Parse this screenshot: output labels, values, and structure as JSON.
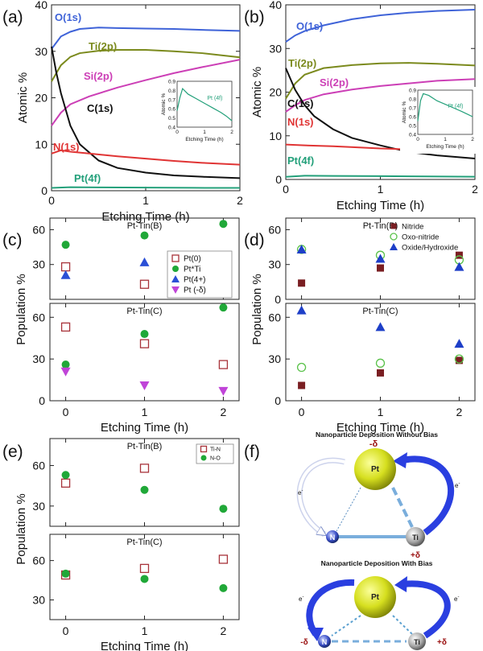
{
  "chart_data": [
    {
      "panel": "(a)",
      "type": "line",
      "xlabel": "Etching Time (h)",
      "ylabel": "Atomic %",
      "xlim": [
        0,
        2
      ],
      "ylim": [
        0,
        40
      ],
      "xticks": [
        "0",
        "1",
        "2"
      ],
      "yticks": [
        "0",
        "10",
        "20",
        "30",
        "40"
      ],
      "series": [
        {
          "name": "O(1s)",
          "color": "#3f63d8",
          "x": [
            0,
            0.1,
            0.2,
            0.3,
            0.5,
            0.7,
            1.0,
            1.3,
            1.6,
            2.0
          ],
          "y": [
            30.5,
            33.2,
            34.2,
            34.8,
            35.1,
            35.0,
            34.9,
            34.8,
            34.6,
            34.4
          ]
        },
        {
          "name": "Ti(2p)",
          "color": "#7b8a1d",
          "x": [
            0,
            0.1,
            0.2,
            0.3,
            0.5,
            0.7,
            1.0,
            1.3,
            1.6,
            2.0
          ],
          "y": [
            23.5,
            27.0,
            28.8,
            29.6,
            30.1,
            30.3,
            30.3,
            30.0,
            29.6,
            28.7
          ]
        },
        {
          "name": "Si(2p)",
          "color": "#cc3fb6",
          "x": [
            0,
            0.1,
            0.2,
            0.4,
            0.7,
            1.0,
            1.3,
            1.6,
            2.0
          ],
          "y": [
            14.0,
            16.8,
            18.6,
            20.3,
            22.2,
            23.8,
            25.3,
            26.6,
            28.2
          ]
        },
        {
          "name": "C(1s)",
          "color": "#101010",
          "x": [
            0,
            0.05,
            0.1,
            0.2,
            0.3,
            0.5,
            0.7,
            1.0,
            1.3,
            1.6,
            2.0
          ],
          "y": [
            31.0,
            25.5,
            21.0,
            14.0,
            10.0,
            6.5,
            4.9,
            3.9,
            3.3,
            3.0,
            2.7
          ]
        },
        {
          "name": "N(1s)",
          "color": "#e03434",
          "x": [
            0,
            0.1,
            0.2,
            0.4,
            0.7,
            1.0,
            1.3,
            1.6,
            2.0
          ],
          "y": [
            8.0,
            8.7,
            8.4,
            8.0,
            7.4,
            6.9,
            6.4,
            6.0,
            5.6
          ]
        },
        {
          "name": "Pt(4f)",
          "color": "#23a07a",
          "x": [
            0,
            0.2,
            0.5,
            1.0,
            1.5,
            2.0
          ],
          "y": [
            0.6,
            0.75,
            0.72,
            0.68,
            0.62,
            0.6
          ]
        }
      ],
      "inset": {
        "xlabel": "Etching Time (h)",
        "ylabel": "Atomic %",
        "label": "Pt (4f)",
        "xlim": [
          0,
          2
        ],
        "ylim": [
          0.4,
          0.9
        ],
        "xticks": [
          "0",
          "1",
          "2"
        ],
        "yticks": [
          "0.4",
          "0.5",
          "0.6",
          "0.7",
          "0.8",
          "0.9"
        ],
        "x": [
          0,
          0.1,
          0.2,
          0.4,
          0.7,
          1.0,
          1.3,
          1.6,
          1.8,
          2.0
        ],
        "y": [
          0.58,
          0.72,
          0.82,
          0.76,
          0.71,
          0.66,
          0.61,
          0.56,
          0.52,
          0.47
        ]
      }
    },
    {
      "panel": "(b)",
      "type": "line",
      "xlabel": "Etching Time (h)",
      "ylabel": "Atomic %",
      "xlim": [
        0,
        2
      ],
      "ylim": [
        0,
        40
      ],
      "xticks": [
        "0",
        "1",
        "2"
      ],
      "yticks": [
        "0",
        "10",
        "20",
        "30",
        "40"
      ],
      "series": [
        {
          "name": "O(1s)",
          "color": "#3f63d8",
          "x": [
            0,
            0.1,
            0.2,
            0.4,
            0.7,
            1.0,
            1.3,
            1.6,
            2.0
          ],
          "y": [
            31.5,
            33.0,
            34.0,
            35.3,
            36.7,
            37.6,
            38.2,
            38.6,
            38.9
          ]
        },
        {
          "name": "Ti(2p)",
          "color": "#7b8a1d",
          "x": [
            0,
            0.1,
            0.2,
            0.4,
            0.7,
            1.0,
            1.3,
            1.6,
            2.0
          ],
          "y": [
            18.5,
            22.0,
            24.0,
            25.5,
            26.2,
            26.6,
            26.7,
            26.5,
            26.1
          ]
        },
        {
          "name": "Si(2p)",
          "color": "#cc3fb6",
          "x": [
            0,
            0.1,
            0.2,
            0.4,
            0.7,
            1.0,
            1.3,
            1.6,
            2.0
          ],
          "y": [
            15.5,
            17.0,
            18.2,
            19.5,
            20.6,
            21.4,
            22.0,
            22.6,
            23.0
          ]
        },
        {
          "name": "C(1s)",
          "color": "#101010",
          "x": [
            0,
            0.05,
            0.1,
            0.2,
            0.3,
            0.5,
            0.7,
            1.0,
            1.3,
            1.6,
            2.0
          ],
          "y": [
            25.5,
            23.0,
            20.5,
            17.0,
            14.5,
            11.5,
            9.5,
            7.8,
            6.3,
            5.5,
            4.8
          ]
        },
        {
          "name": "N(1s)",
          "color": "#e03434",
          "x": [
            0,
            0.2,
            0.5,
            0.8,
            1.0,
            1.3,
            1.6,
            2.0
          ],
          "y": [
            8.0,
            7.8,
            7.6,
            7.3,
            7.1,
            6.9,
            6.8,
            6.6
          ]
        },
        {
          "name": "Pt(4f)",
          "color": "#23a07a",
          "x": [
            0,
            0.2,
            0.5,
            1.0,
            1.5,
            2.0
          ],
          "y": [
            0.6,
            0.85,
            0.8,
            0.75,
            0.7,
            0.62
          ]
        }
      ],
      "inset": {
        "xlabel": "Etching Time (h)",
        "ylabel": "Atomic %",
        "label": "Pt (4f)",
        "xlim": [
          0,
          2
        ],
        "ylim": [
          0.4,
          0.9
        ],
        "xticks": [
          "0",
          "1",
          "2"
        ],
        "yticks": [
          "0.4",
          "0.5",
          "0.6",
          "0.7",
          "0.8",
          "0.9"
        ],
        "x": [
          0,
          0.1,
          0.2,
          0.4,
          0.7,
          1.0,
          1.3,
          1.6,
          1.8,
          2.0
        ],
        "y": [
          0.55,
          0.78,
          0.86,
          0.84,
          0.78,
          0.74,
          0.7,
          0.66,
          0.63,
          0.6
        ]
      }
    },
    {
      "panel": "(c)",
      "type": "scatter",
      "xlabel": "Etching Time (h)",
      "ylabel": "Population %",
      "xlim": [
        -0.2,
        2.2
      ],
      "xticks": [
        "0",
        "1",
        "2"
      ],
      "legend": [
        "Pt(0)",
        "Pt*Ti",
        "Pt(4+)",
        "Pt (-δ)"
      ],
      "subplots": [
        {
          "title": "Pt-Tin(B)",
          "ylim": [
            0,
            70
          ],
          "yticks": [
            "30",
            "60"
          ],
          "series": [
            {
              "name": "Pt(0)",
              "marker": "square-open",
              "color": "#a8333a",
              "x": [
                0,
                1,
                2
              ],
              "y": [
                28,
                13,
                8
              ]
            },
            {
              "name": "Pt*Ti",
              "marker": "circle",
              "color": "#20a838",
              "x": [
                0,
                1,
                2
              ],
              "y": [
                47,
                55,
                65
              ]
            },
            {
              "name": "Pt(4+)",
              "marker": "triangle-up",
              "color": "#2a4fd6",
              "x": [
                0,
                1,
                2
              ],
              "y": [
                21,
                32,
                28
              ]
            },
            {
              "name": "Pt (-δ)",
              "marker": "triangle-down",
              "color": "#c044d8",
              "x": [],
              "y": []
            }
          ]
        },
        {
          "title": "Pt-Tin(C)",
          "ylim": [
            0,
            70
          ],
          "yticks": [
            "0",
            "30",
            "60"
          ],
          "series": [
            {
              "name": "Pt(0)",
              "marker": "square-open",
              "color": "#a8333a",
              "x": [
                0,
                1,
                2
              ],
              "y": [
                53,
                41,
                26
              ]
            },
            {
              "name": "Pt*Ti",
              "marker": "circle",
              "color": "#20a838",
              "x": [
                0,
                1,
                2
              ],
              "y": [
                26,
                48,
                67
              ]
            },
            {
              "name": "Pt (-δ)",
              "marker": "triangle-down",
              "color": "#c044d8",
              "x": [
                0,
                1,
                2
              ],
              "y": [
                21,
                11,
                7
              ]
            }
          ]
        }
      ]
    },
    {
      "panel": "(d)",
      "type": "scatter",
      "xlabel": "Etching Time (h)",
      "ylabel": "Population %",
      "xlim": [
        -0.2,
        2.2
      ],
      "xticks": [
        "0",
        "1",
        "2"
      ],
      "legend": [
        "Nitride",
        "Oxo-nitride",
        "Oxide/Hydroxide"
      ],
      "subplots": [
        {
          "title": "Pt-Tin(B)",
          "ylim": [
            0,
            70
          ],
          "yticks": [
            "0",
            "30",
            "60"
          ],
          "series": [
            {
              "name": "Nitride",
              "marker": "square",
              "color": "#7a1e22",
              "x": [
                0,
                1,
                2
              ],
              "y": [
                14,
                27,
                38
              ]
            },
            {
              "name": "Oxo-nitride",
              "marker": "circle-open",
              "color": "#5ac24a",
              "x": [
                0,
                1,
                2
              ],
              "y": [
                43,
                38,
                34
              ]
            },
            {
              "name": "Oxide/Hydroxide",
              "marker": "triangle-up",
              "color": "#1e3fc8",
              "x": [
                0,
                1,
                2
              ],
              "y": [
                43,
                35,
                28
              ]
            }
          ]
        },
        {
          "title": "Pt-Tin(C)",
          "ylim": [
            0,
            70
          ],
          "yticks": [
            "0",
            "30",
            "60"
          ],
          "series": [
            {
              "name": "Nitride",
              "marker": "square",
              "color": "#7a1e22",
              "x": [
                0,
                1,
                2
              ],
              "y": [
                11,
                20,
                29
              ]
            },
            {
              "name": "Oxo-nitride",
              "marker": "circle-open",
              "color": "#5ac24a",
              "x": [
                0,
                1,
                2
              ],
              "y": [
                24,
                27,
                30
              ]
            },
            {
              "name": "Oxide/Hydroxide",
              "marker": "triangle-up",
              "color": "#1e3fc8",
              "x": [
                0,
                1,
                2
              ],
              "y": [
                65,
                53,
                41
              ]
            }
          ]
        }
      ]
    },
    {
      "panel": "(e)",
      "type": "scatter",
      "xlabel": "Etching Time (h)",
      "ylabel": "Population %",
      "xlim": [
        -0.2,
        2.2
      ],
      "xticks": [
        "0",
        "1",
        "2"
      ],
      "legend": [
        "Ti-N",
        "N-O"
      ],
      "subplots": [
        {
          "title": "Pt-Tin(B)",
          "ylim": [
            15,
            80
          ],
          "yticks": [
            "30",
            "60"
          ],
          "series": [
            {
              "name": "Ti-N",
              "marker": "square-open",
              "color": "#a8333a",
              "x": [
                0,
                1,
                2
              ],
              "y": [
                47,
                58,
                71
              ]
            },
            {
              "name": "N-O",
              "marker": "circle",
              "color": "#20a838",
              "x": [
                0,
                1,
                2
              ],
              "y": [
                53,
                42,
                28
              ]
            }
          ]
        },
        {
          "title": "Pt-Tin(C)",
          "ylim": [
            15,
            80
          ],
          "yticks": [
            "30",
            "60"
          ],
          "series": [
            {
              "name": "Ti-N",
              "marker": "square-open",
              "color": "#a8333a",
              "x": [
                0,
                1,
                2
              ],
              "y": [
                49,
                54,
                61
              ]
            },
            {
              "name": "N-O",
              "marker": "circle",
              "color": "#20a838",
              "x": [
                0,
                1,
                2
              ],
              "y": [
                50,
                46,
                39
              ]
            }
          ]
        }
      ]
    }
  ],
  "labels": {
    "a": "(a)",
    "b": "(b)",
    "c": "(c)",
    "d": "(d)",
    "e": "(e)",
    "f": "(f)"
  },
  "diagram": {
    "title1": "Nanoparticle Deposition Without Bias",
    "title2": "Nanoparticle Deposition With Bias",
    "pt": "Pt",
    "n": "N",
    "ti": "Ti",
    "neg_delta": "-δ",
    "pos_delta": "+δ",
    "electron": "e",
    "electron_sup": "-"
  },
  "colors": {
    "ptSphere": "#d8e020",
    "arrowBlue": "#2244dd",
    "bondBlue": "#7aaedc",
    "deltaRed": "#9a1010"
  }
}
